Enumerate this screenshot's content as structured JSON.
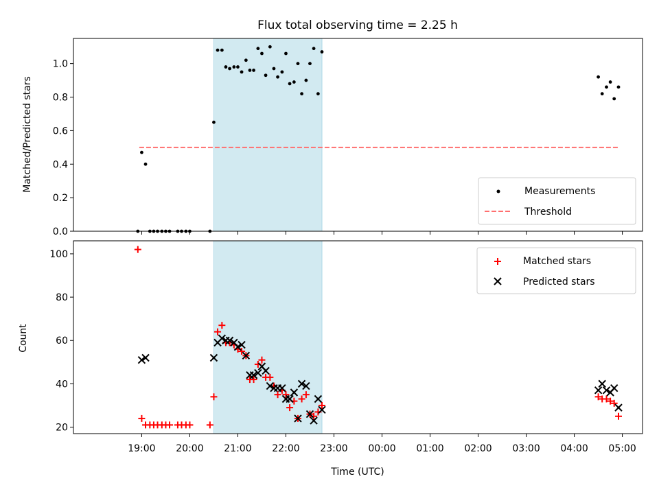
{
  "chart_data": [
    {
      "type": "scatter",
      "title": "Flux total observing time = 2.25 h",
      "ylabel": "Matched/Predicted stars",
      "xlabel": "",
      "ylim": [
        0,
        1.15
      ],
      "yticks": [
        0.0,
        0.2,
        0.4,
        0.6,
        0.8,
        1.0
      ],
      "ytick_labels": [
        "0.0",
        "0.2",
        "0.4",
        "0.6",
        "0.8",
        "1.0"
      ],
      "shaded_interval": {
        "x0": 20.5,
        "x1": 22.75,
        "color": "#add8e6"
      },
      "threshold": {
        "name": "Threshold",
        "y": 0.5,
        "x0": 18.95,
        "x1": 28.92,
        "color": "#ff6f6f"
      },
      "legend_position": "lower right",
      "series": [
        {
          "name": "Measurements",
          "marker": "dot",
          "color": "#000000",
          "x": [
            18.92,
            19.0,
            19.08,
            19.17,
            19.25,
            19.33,
            19.42,
            19.5,
            19.58,
            19.75,
            19.83,
            19.92,
            20.0,
            20.42,
            20.5,
            20.58,
            20.67,
            20.75,
            20.83,
            20.92,
            21.0,
            21.08,
            21.17,
            21.25,
            21.33,
            21.42,
            21.5,
            21.58,
            21.67,
            21.75,
            21.83,
            21.92,
            22.0,
            22.08,
            22.17,
            22.25,
            22.33,
            22.42,
            22.5,
            22.58,
            22.67,
            22.75,
            28.5,
            28.58,
            28.67,
            28.75,
            28.83,
            28.92
          ],
          "y": [
            0.0,
            0.47,
            0.4,
            0.0,
            0.0,
            0.0,
            0.0,
            0.0,
            0.0,
            0.0,
            0.0,
            0.0,
            0.0,
            0.0,
            0.65,
            1.08,
            1.08,
            0.98,
            0.97,
            0.98,
            0.98,
            0.95,
            1.02,
            0.96,
            0.96,
            1.09,
            1.06,
            0.93,
            1.1,
            0.97,
            0.92,
            0.95,
            1.06,
            0.88,
            0.89,
            1.0,
            0.82,
            0.9,
            1.0,
            1.09,
            0.82,
            1.07,
            0.92,
            0.82,
            0.86,
            0.89,
            0.79,
            0.86
          ]
        }
      ]
    },
    {
      "type": "scatter",
      "title": "",
      "ylabel": "Count",
      "xlabel": "Time (UTC)",
      "ylim": [
        17,
        106
      ],
      "yticks": [
        20,
        40,
        60,
        80,
        100
      ],
      "ytick_labels": [
        "20",
        "40",
        "60",
        "80",
        "100"
      ],
      "xlim": [
        17.58,
        29.42
      ],
      "xticks": [
        19,
        20,
        21,
        22,
        23,
        24,
        25,
        26,
        27,
        28,
        29
      ],
      "xtick_labels": [
        "19:00",
        "20:00",
        "21:00",
        "22:00",
        "23:00",
        "00:00",
        "01:00",
        "02:00",
        "03:00",
        "04:00",
        "05:00"
      ],
      "shaded_interval": {
        "x0": 20.5,
        "x1": 22.75,
        "color": "#add8e6"
      },
      "legend_position": "upper right",
      "series": [
        {
          "name": "Matched stars",
          "marker": "plus",
          "color": "#ff0000",
          "x": [
            18.92,
            19.0,
            19.08,
            19.17,
            19.25,
            19.33,
            19.42,
            19.5,
            19.58,
            19.75,
            19.83,
            19.92,
            20.0,
            20.42,
            20.5,
            20.58,
            20.67,
            20.75,
            20.83,
            20.92,
            21.0,
            21.08,
            21.17,
            21.25,
            21.33,
            21.42,
            21.5,
            21.58,
            21.67,
            21.75,
            21.83,
            21.92,
            22.0,
            22.08,
            22.17,
            22.25,
            22.33,
            22.42,
            22.5,
            22.58,
            22.67,
            22.75,
            28.5,
            28.58,
            28.67,
            28.75,
            28.83,
            28.92
          ],
          "y": [
            102,
            24,
            21,
            21,
            21,
            21,
            21,
            21,
            21,
            21,
            21,
            21,
            21,
            21,
            34,
            64,
            67,
            59,
            59,
            58,
            56,
            55,
            53,
            42,
            42,
            49,
            51,
            43,
            43,
            39,
            35,
            37,
            35,
            29,
            32,
            24,
            33,
            35,
            26,
            25,
            27,
            30,
            34,
            33,
            33,
            32,
            31,
            25
          ]
        },
        {
          "name": "Predicted stars",
          "marker": "x",
          "color": "#000000",
          "x": [
            19.0,
            19.08,
            20.5,
            20.58,
            20.67,
            20.75,
            20.83,
            20.92,
            21.0,
            21.08,
            21.17,
            21.25,
            21.33,
            21.42,
            21.5,
            21.58,
            21.67,
            21.75,
            21.83,
            21.92,
            22.0,
            22.08,
            22.17,
            22.25,
            22.33,
            22.42,
            22.5,
            22.58,
            22.67,
            22.75,
            28.5,
            28.58,
            28.67,
            28.75,
            28.83,
            28.92
          ],
          "y": [
            51,
            52,
            52,
            59,
            61,
            60,
            60,
            59,
            57,
            58,
            53,
            44,
            44,
            45,
            48,
            46,
            39,
            38,
            38,
            38,
            33,
            33,
            36,
            24,
            40,
            39,
            26,
            23,
            33,
            28,
            37,
            40,
            37,
            36,
            38,
            29
          ]
        }
      ]
    }
  ]
}
